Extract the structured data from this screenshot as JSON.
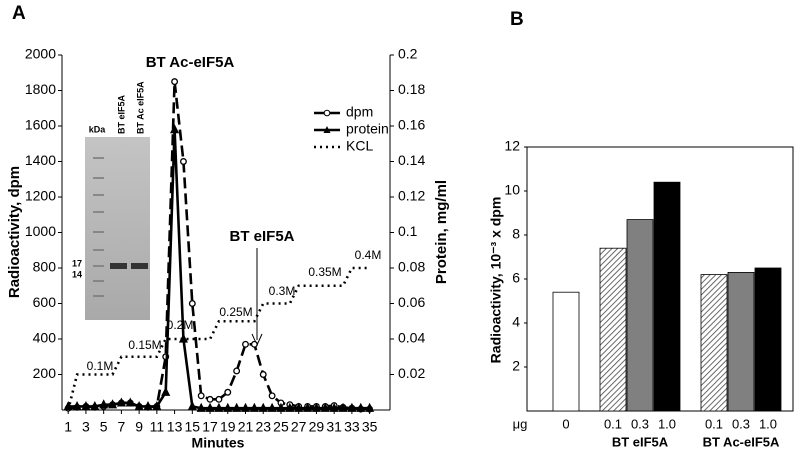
{
  "chart_data": [
    {
      "type": "line",
      "panel": "A",
      "x_label": "Minutes",
      "y_label": "Radioactivity, dpm",
      "y2_label": "Protein, mg/ml",
      "x": [
        1,
        2,
        3,
        4,
        5,
        6,
        7,
        8,
        9,
        10,
        11,
        12,
        13,
        14,
        15,
        16,
        17,
        18,
        19,
        20,
        21,
        22,
        23,
        24,
        25,
        26,
        27,
        28,
        29,
        30,
        31,
        32,
        33,
        34,
        35
      ],
      "series": [
        {
          "name": "dpm",
          "color": "#000000",
          "style": "dashed",
          "marker": "circle",
          "axis": "y",
          "values": [
            10,
            15,
            20,
            15,
            20,
            30,
            40,
            40,
            20,
            15,
            20,
            300,
            1850,
            1400,
            600,
            80,
            60,
            60,
            100,
            220,
            370,
            370,
            200,
            80,
            40,
            30,
            20,
            20,
            20,
            20,
            25,
            15,
            10,
            5,
            5
          ]
        },
        {
          "name": "protein",
          "color": "#000000",
          "style": "solid",
          "marker": "triangle",
          "axis": "y2",
          "values": [
            0.002,
            0.002,
            0.002,
            0.002,
            0.003,
            0.003,
            0.004,
            0.004,
            0.002,
            0.002,
            0.002,
            0.01,
            0.158,
            0.04,
            0.002,
            0.001,
            0.001,
            0.001,
            0.001,
            0.001,
            0.001,
            0.001,
            0.001,
            0.001,
            0.001,
            0.001,
            0.001,
            0.001,
            0.001,
            0.001,
            0.001,
            0.001,
            0.001,
            0.001,
            0.001
          ]
        },
        {
          "name": "KCL",
          "color": "#000000",
          "style": "dotted",
          "marker": null,
          "axis": "y",
          "values": [
            0,
            200,
            200,
            200,
            200,
            200,
            300,
            300,
            300,
            300,
            300,
            400,
            400,
            400,
            400,
            400,
            400,
            500,
            500,
            500,
            500,
            500,
            600,
            600,
            600,
            600,
            700,
            700,
            700,
            700,
            700,
            700,
            800,
            800,
            800
          ]
        }
      ],
      "xlim": [
        0.3,
        37.3
      ],
      "xticks": [
        1,
        3,
        5,
        7,
        9,
        11,
        13,
        15,
        17,
        19,
        21,
        23,
        25,
        27,
        29,
        31,
        33,
        35
      ],
      "ylim": [
        0,
        2000
      ],
      "yticks": [
        200,
        400,
        600,
        800,
        1000,
        1200,
        1400,
        1600,
        1800,
        2000
      ],
      "y2lim": [
        0,
        0.2
      ],
      "y2ticks": [
        0.02,
        0.04,
        0.06,
        0.08,
        0.1,
        0.12,
        0.14,
        0.16,
        0.18,
        0.2
      ],
      "annotations": [
        "BT Ac-eIF5A",
        "BT eIF5A"
      ],
      "kcl_labels": [
        "0.1M",
        "0.15M",
        "0.2M",
        "0.25M",
        "0.3M",
        "0.35M",
        "0.4M"
      ],
      "gel": {
        "unit": "kDa",
        "lanes": [
          "BT eIF5A",
          "BT Ac eIF5A"
        ],
        "markers": [
          "17",
          "14"
        ]
      }
    },
    {
      "type": "bar",
      "panel": "B",
      "y_label": "Radioactivity, 10⁻³ x dpm",
      "x_unit": "μg",
      "categories": [
        "0",
        "0.1",
        "0.3",
        "1.0",
        "0.1",
        "0.3",
        "1.0"
      ],
      "groups": [
        null,
        "BT eIF5A",
        "BT eIF5A",
        "BT eIF5A",
        "BT Ac-eIF5A",
        "BT Ac-eIF5A",
        "BT Ac-eIF5A"
      ],
      "values": [
        5.4,
        7.4,
        8.7,
        10.4,
        6.2,
        6.3,
        6.5
      ],
      "fills": [
        "#ffffff",
        "hatch",
        "#808080",
        "#000000",
        "hatch",
        "#808080",
        "#000000"
      ],
      "ylim": [
        0,
        12
      ],
      "yticks": [
        2,
        4,
        6,
        8,
        10,
        12
      ]
    }
  ]
}
